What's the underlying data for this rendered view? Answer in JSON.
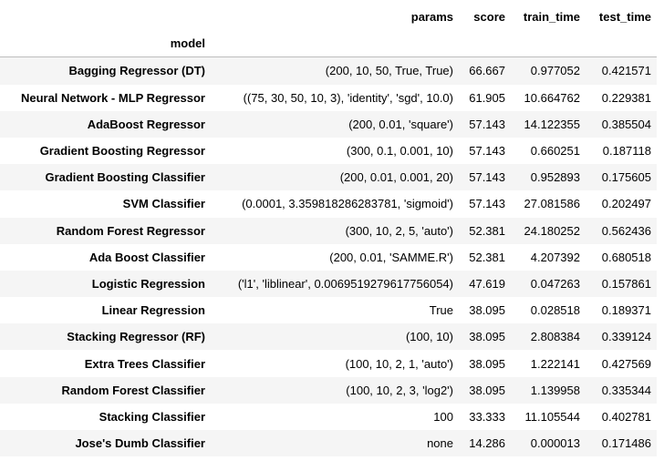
{
  "table": {
    "index_name": "model",
    "columns": [
      "params",
      "score",
      "train_time",
      "test_time"
    ],
    "rows": [
      {
        "model": "Bagging Regressor (DT)",
        "params": "(200, 10, 50, True, True)",
        "score": "66.667",
        "train_time": "0.977052",
        "test_time": "0.421571"
      },
      {
        "model": "Neural Network - MLP Regressor",
        "params": "((75, 30, 50, 10, 3), 'identity', 'sgd', 10.0)",
        "score": "61.905",
        "train_time": "10.664762",
        "test_time": "0.229381"
      },
      {
        "model": "AdaBoost Regressor",
        "params": "(200, 0.01, 'square')",
        "score": "57.143",
        "train_time": "14.122355",
        "test_time": "0.385504"
      },
      {
        "model": "Gradient Boosting Regressor",
        "params": "(300, 0.1, 0.001, 10)",
        "score": "57.143",
        "train_time": "0.660251",
        "test_time": "0.187118"
      },
      {
        "model": "Gradient Boosting Classifier",
        "params": "(200, 0.01, 0.001, 20)",
        "score": "57.143",
        "train_time": "0.952893",
        "test_time": "0.175605"
      },
      {
        "model": "SVM Classifier",
        "params": "(0.0001, 3.359818286283781, 'sigmoid')",
        "score": "57.143",
        "train_time": "27.081586",
        "test_time": "0.202497"
      },
      {
        "model": "Random Forest Regressor",
        "params": "(300, 10, 2, 5, 'auto')",
        "score": "52.381",
        "train_time": "24.180252",
        "test_time": "0.562436"
      },
      {
        "model": "Ada Boost Classifier",
        "params": "(200, 0.01, 'SAMME.R')",
        "score": "52.381",
        "train_time": "4.207392",
        "test_time": "0.680518"
      },
      {
        "model": "Logistic Regression",
        "params": "('l1', 'liblinear', 0.0069519279617756054)",
        "score": "47.619",
        "train_time": "0.047263",
        "test_time": "0.157861"
      },
      {
        "model": "Linear Regression",
        "params": "True",
        "score": "38.095",
        "train_time": "0.028518",
        "test_time": "0.189371"
      },
      {
        "model": "Stacking Regressor (RF)",
        "params": "(100, 10)",
        "score": "38.095",
        "train_time": "2.808384",
        "test_time": "0.339124"
      },
      {
        "model": "Extra Trees Classifier",
        "params": "(100, 10, 2, 1, 'auto')",
        "score": "38.095",
        "train_time": "1.222141",
        "test_time": "0.427569"
      },
      {
        "model": "Random Forest Classifier",
        "params": "(100, 10, 2, 3, 'log2')",
        "score": "38.095",
        "train_time": "1.139958",
        "test_time": "0.335344"
      },
      {
        "model": "Stacking Classifier",
        "params": "100",
        "score": "33.333",
        "train_time": "11.105544",
        "test_time": "0.402781"
      },
      {
        "model": "Jose's Dumb Classifier",
        "params": "none",
        "score": "14.286",
        "train_time": "0.000013",
        "test_time": "0.171486"
      }
    ]
  }
}
